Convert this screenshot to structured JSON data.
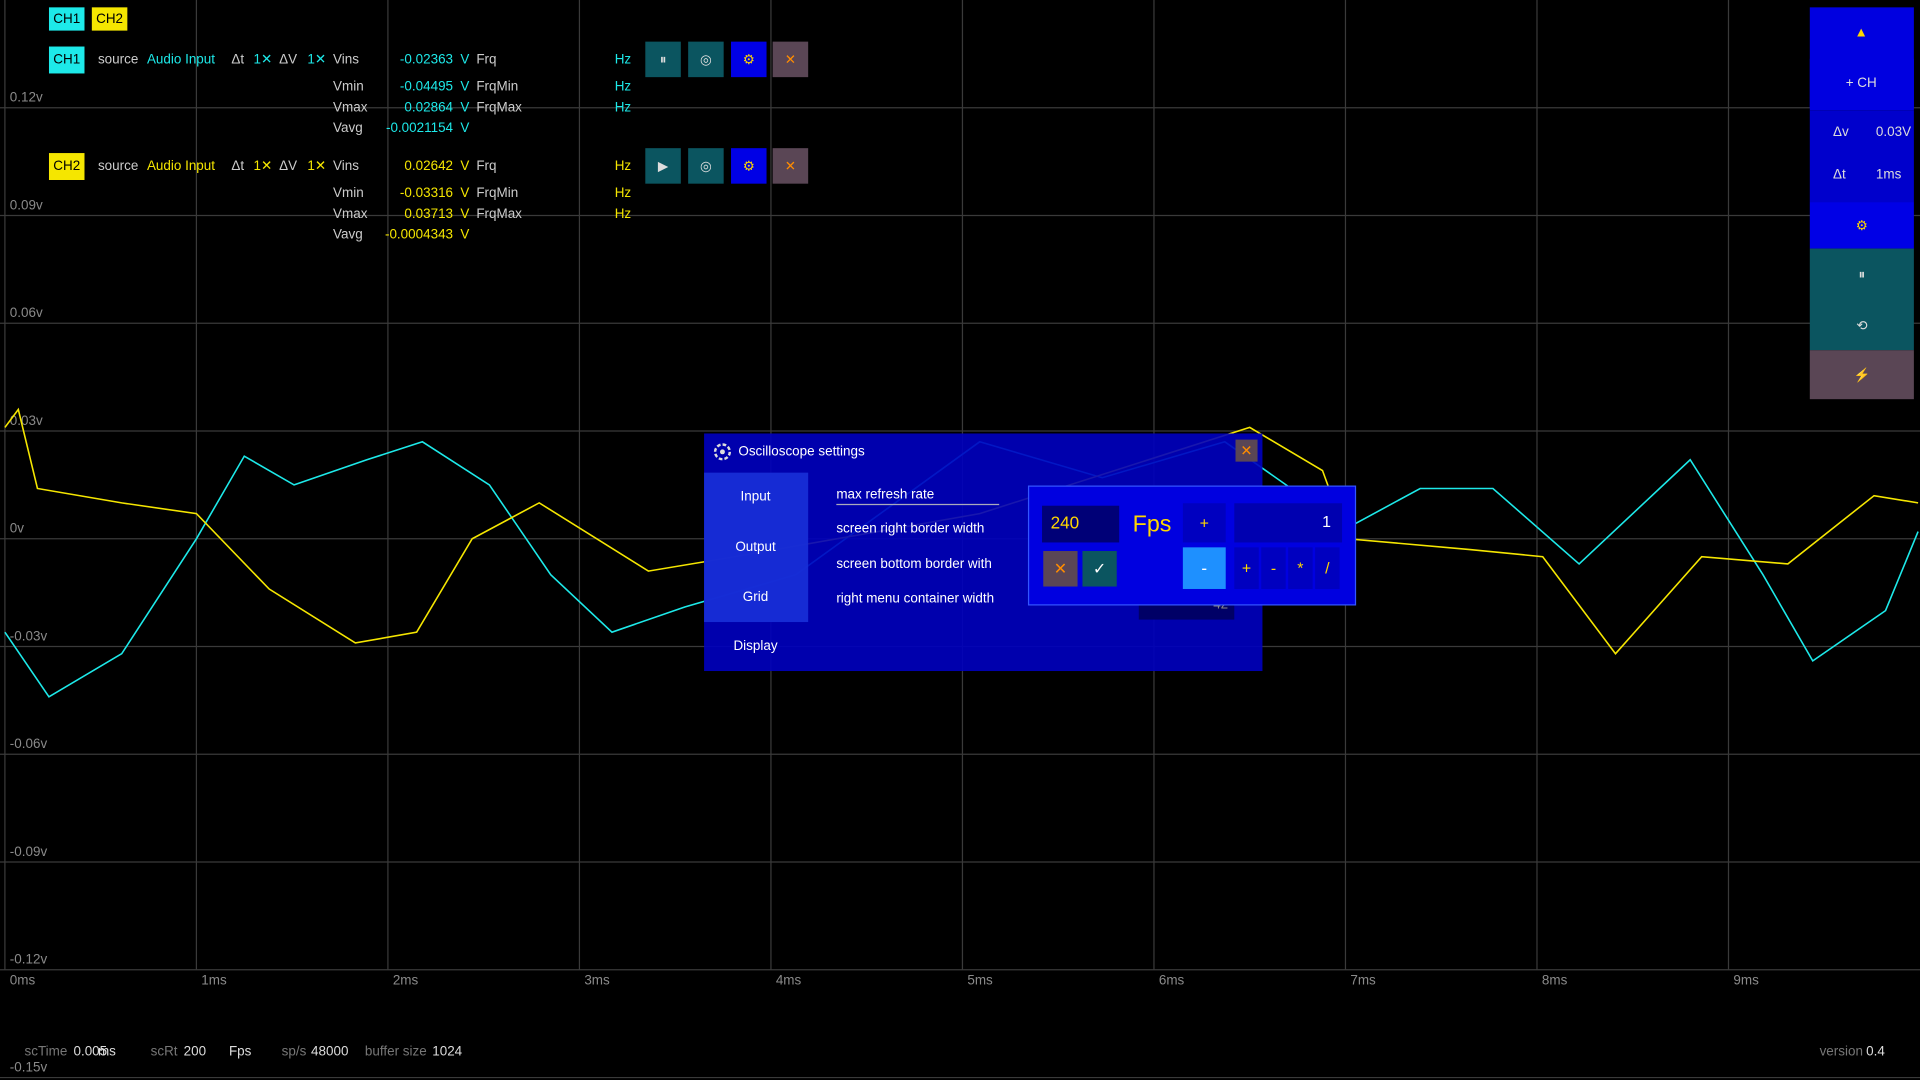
{
  "chart_data": {
    "type": "line",
    "xlim": [
      0,
      10
    ],
    "ylim": [
      -0.15,
      0.15
    ],
    "grid": true,
    "xticks": [
      {
        "value": 0,
        "label": "0ms"
      },
      {
        "value": 1,
        "label": "1ms"
      },
      {
        "value": 2,
        "label": "2ms"
      },
      {
        "value": 3,
        "label": "3ms"
      },
      {
        "value": 4,
        "label": "4ms"
      },
      {
        "value": 5,
        "label": "5ms"
      },
      {
        "value": 6,
        "label": "6ms"
      },
      {
        "value": 7,
        "label": "7ms"
      },
      {
        "value": 8,
        "label": "8ms"
      },
      {
        "value": 9,
        "label": "9ms"
      }
    ],
    "yticks": [
      {
        "value": 0.12,
        "label": "0.12v"
      },
      {
        "value": 0.09,
        "label": "0.09v"
      },
      {
        "value": 0.06,
        "label": "0.06v"
      },
      {
        "value": 0.03,
        "label": "0.03v"
      },
      {
        "value": 0,
        "label": "0v"
      },
      {
        "value": -0.03,
        "label": "-0.03v"
      },
      {
        "value": -0.06,
        "label": "-0.06v"
      },
      {
        "value": -0.09,
        "label": "-0.09v"
      },
      {
        "value": -0.12,
        "label": "-0.12v"
      },
      {
        "value": -0.15,
        "label": "-0.15v"
      }
    ],
    "series": [
      {
        "name": "CH1",
        "color": "#1de9e9",
        "x": [
          0,
          0.23,
          0.61,
          1.0,
          1.25,
          1.51,
          1.89,
          2.18,
          2.53,
          2.85,
          3.17,
          3.55,
          4.13,
          5.09,
          5.73,
          6.37,
          7.01,
          7.39,
          7.77,
          8.22,
          8.8,
          9.18,
          9.44,
          9.82,
          9.99
        ],
        "values": [
          -0.026,
          -0.044,
          -0.032,
          0,
          0.023,
          0.015,
          0.022,
          0.027,
          0.015,
          -0.01,
          -0.026,
          -0.019,
          -0.01,
          0.027,
          0.017,
          0.027,
          0.003,
          0.014,
          0.014,
          -0.007,
          0.022,
          -0.01,
          -0.034,
          -0.02,
          0.002
        ]
      },
      {
        "name": "CH2",
        "color": "#f5e600",
        "x": [
          0,
          0.07,
          0.17,
          0.61,
          1.0,
          1.38,
          1.83,
          2.15,
          2.44,
          2.79,
          3.36,
          3.81,
          5.09,
          6.5,
          6.88,
          7.01,
          7.65,
          8.03,
          8.41,
          8.86,
          9.31,
          9.76,
          9.99
        ],
        "values": [
          0.031,
          0.036,
          0.014,
          0.01,
          0.007,
          -0.014,
          -0.029,
          -0.026,
          0,
          0.01,
          -0.009,
          -0.005,
          0.007,
          0.031,
          0.019,
          0,
          -0.003,
          -0.005,
          -0.032,
          -0.005,
          -0.007,
          0.012,
          0.01
        ]
      }
    ]
  },
  "channels": [
    {
      "name": "CH1",
      "source_label": "source",
      "source": "Audio Input",
      "dt_label": "Δt",
      "dt": "1✕",
      "dv_label": "ΔV",
      "dv": "1✕",
      "stats": [
        {
          "label": "Vins",
          "value": "-0.02363",
          "unit": "V",
          "freq_label": "Frq",
          "freq_unit": "Hz"
        },
        {
          "label": "Vmin",
          "value": "-0.04495",
          "unit": "V",
          "freq_label": "FrqMin",
          "freq_unit": "Hz"
        },
        {
          "label": "Vmax",
          "value": "0.02864",
          "unit": "V",
          "freq_label": "FrqMax",
          "freq_unit": "Hz"
        },
        {
          "label": "Vavg",
          "value": "-0.0021154",
          "unit": "V"
        }
      ],
      "buttons": [
        "⏸",
        "◎",
        "⚙",
        "✕"
      ]
    },
    {
      "name": "CH2",
      "source_label": "source",
      "source": "Audio Input",
      "dt_label": "Δt",
      "dt": "1✕",
      "dv_label": "ΔV",
      "dv": "1✕",
      "stats": [
        {
          "label": "Vins",
          "value": "0.02642",
          "unit": "V",
          "freq_label": "Frq",
          "freq_unit": "Hz"
        },
        {
          "label": "Vmin",
          "value": "-0.03316",
          "unit": "V",
          "freq_label": "FrqMin",
          "freq_unit": "Hz"
        },
        {
          "label": "Vmax",
          "value": "0.03713",
          "unit": "V",
          "freq_label": "FrqMax",
          "freq_unit": "Hz"
        },
        {
          "label": "Vavg",
          "value": "-0.0004343",
          "unit": "V"
        }
      ],
      "buttons": [
        "▶",
        "◎",
        "⚙",
        "✕"
      ]
    }
  ],
  "right_menu": {
    "up": "▲",
    "add": "+ CH",
    "dv_label": "Δv",
    "dv": "0.03V",
    "dt_label": "Δt",
    "dt": "1ms",
    "settings": "⚙",
    "pause": "⏸",
    "reset": "⟲",
    "power": "⚡"
  },
  "settings": {
    "title": "Oscilloscope settings",
    "close": "✕",
    "tabs": [
      "Input",
      "Output",
      "Grid",
      "Display"
    ],
    "options": [
      "max refresh rate",
      "screen right border width",
      "screen bottom border with",
      "right menu container width"
    ],
    "hidden_value": "42"
  },
  "keypad": {
    "value": "240",
    "unit": "Fps",
    "plus": "+",
    "minus": "-",
    "step": "1",
    "ops": [
      "+",
      "-",
      "*",
      "/"
    ],
    "cancel": "✕",
    "ok": "✓"
  },
  "status": {
    "sctime_label": "scTime",
    "sctime": "0.005",
    "sctime_unit": "ms",
    "scrt_label": "scRt",
    "scrt": "200",
    "scrt_unit": "Fps",
    "sps_label": "sp/s",
    "sps": "48000",
    "buffer_label": "buffer size",
    "buffer": "1024",
    "version_label": "version",
    "version": "0.4"
  }
}
